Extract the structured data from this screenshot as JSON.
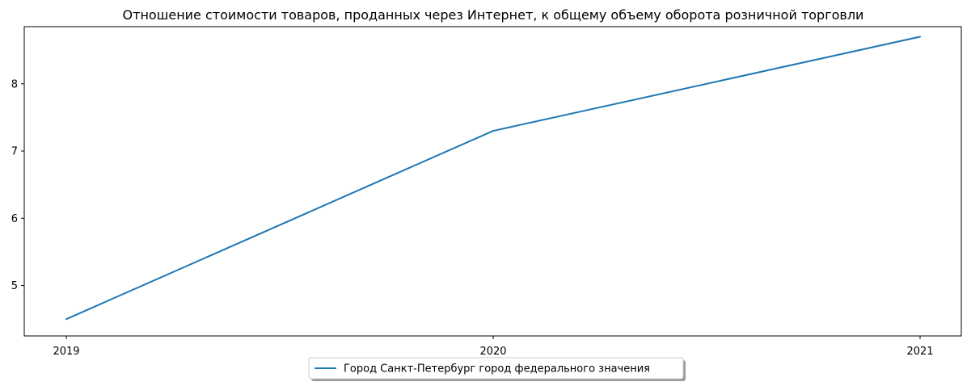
{
  "chart_data": {
    "type": "line",
    "title": "Отношение стоимости товаров, проданных через Интернет, к общему объему оборота розничной торговли",
    "xlabel": "",
    "ylabel": "",
    "x": [
      "2019",
      "2020",
      "2021"
    ],
    "series": [
      {
        "name": "Город Санкт-Петербург город федерального значения",
        "values": [
          4.5,
          7.3,
          8.7
        ],
        "color": "#1f77b4"
      }
    ],
    "ylim": [
      4.25,
      8.85
    ],
    "yticks": [
      "5",
      "6",
      "7",
      "8"
    ],
    "grid": false,
    "legend_position": "bottom-center"
  }
}
